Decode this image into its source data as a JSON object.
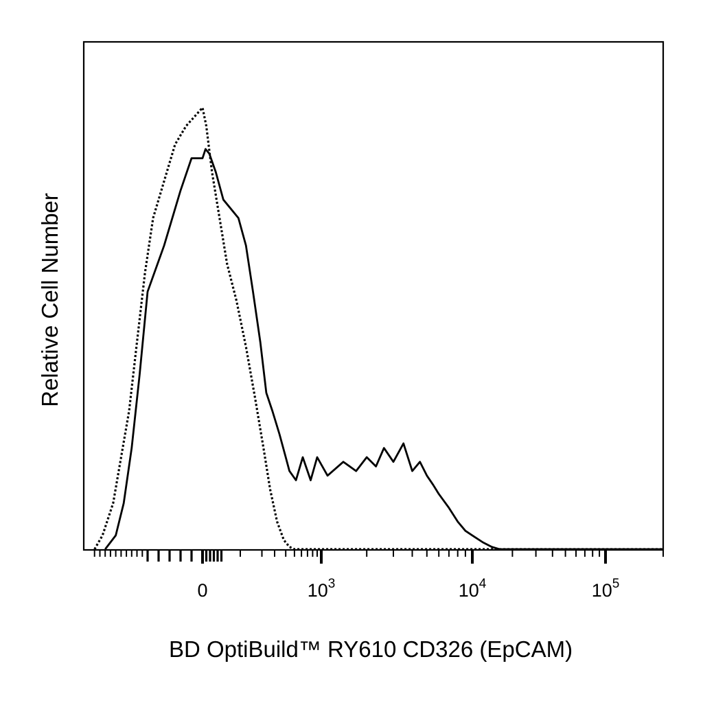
{
  "chart_data": {
    "type": "line",
    "title": "",
    "xlabel": "BD OptiBuild™ RY610 CD326 (EpCAM)",
    "ylabel": "Relative Cell Number",
    "x_scale": "biexponential",
    "xlim": [
      -150,
      200000
    ],
    "ylim": [
      0,
      1.0
    ],
    "grid": false,
    "legend": "none",
    "tick_labels": [
      {
        "value": 0,
        "base": "0",
        "exp": ""
      },
      {
        "value": 1000,
        "base": "10",
        "exp": "3"
      },
      {
        "value": 10000,
        "base": "10",
        "exp": "4"
      },
      {
        "value": 100000,
        "base": "10",
        "exp": "5"
      }
    ],
    "series": [
      {
        "style": "solid",
        "color": "#000000",
        "x": [
          -130,
          -110,
          -95,
          -80,
          -65,
          -50,
          -35,
          -20,
          -10,
          0,
          8,
          18,
          35,
          55,
          75,
          95,
          120,
          150,
          190,
          230,
          280,
          340,
          400,
          440,
          520,
          620,
          760,
          900,
          1100,
          1400,
          1700,
          2000,
          2300,
          2600,
          3000,
          3500,
          4000,
          4500,
          5000,
          5500,
          6000,
          7000,
          8000,
          9000,
          10000,
          12000,
          14000,
          16000,
          18000,
          20000,
          22000,
          25000,
          40000,
          100000,
          200000
        ],
        "y": [
          0.0,
          0.03,
          0.1,
          0.22,
          0.38,
          0.56,
          0.66,
          0.78,
          0.85,
          0.85,
          0.87,
          0.86,
          0.82,
          0.76,
          0.74,
          0.72,
          0.66,
          0.56,
          0.45,
          0.34,
          0.3,
          0.25,
          0.2,
          0.17,
          0.15,
          0.2,
          0.15,
          0.2,
          0.16,
          0.19,
          0.17,
          0.2,
          0.18,
          0.22,
          0.19,
          0.23,
          0.17,
          0.19,
          0.16,
          0.14,
          0.12,
          0.09,
          0.06,
          0.04,
          0.03,
          0.015,
          0.005,
          0.0,
          0.0,
          0.0,
          0.0,
          0.0,
          0.0,
          0.0,
          0.0
        ]
      },
      {
        "style": "dotted",
        "color": "#000000",
        "x": [
          -150,
          -135,
          -115,
          -100,
          -85,
          -70,
          -55,
          -45,
          -35,
          -25,
          -15,
          0,
          10,
          25,
          45,
          65,
          90,
          120,
          160,
          210,
          260,
          320,
          380,
          440,
          500,
          600,
          1000,
          10000,
          100000,
          200000
        ],
        "y": [
          0.0,
          0.03,
          0.1,
          0.2,
          0.3,
          0.45,
          0.6,
          0.72,
          0.8,
          0.88,
          0.92,
          0.96,
          0.92,
          0.82,
          0.72,
          0.62,
          0.54,
          0.44,
          0.33,
          0.22,
          0.13,
          0.06,
          0.02,
          0.005,
          0.0,
          0.0,
          0.0,
          0.0,
          0.0,
          0.0
        ]
      }
    ]
  }
}
